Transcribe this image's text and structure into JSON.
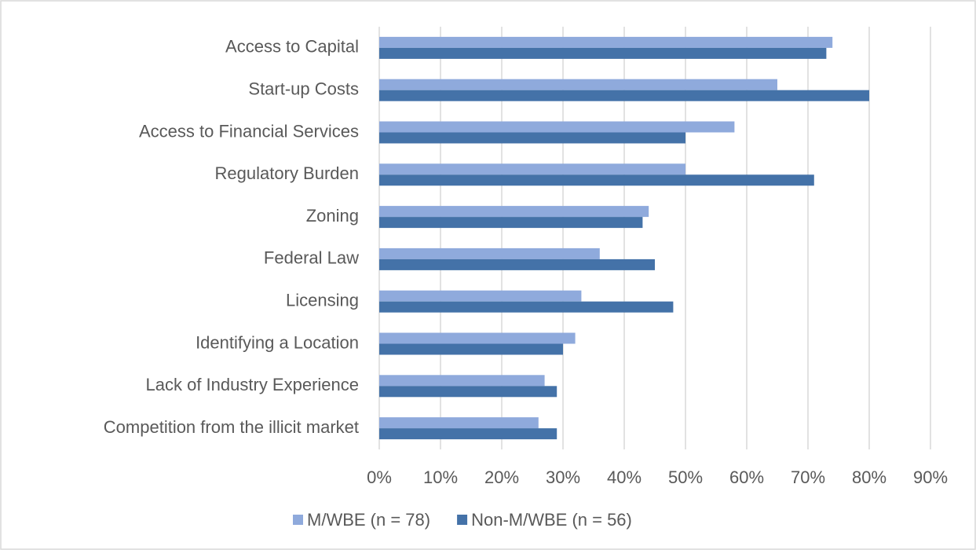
{
  "chart_data": {
    "type": "hbar",
    "categories": [
      "Access to Capital",
      "Start-up Costs",
      "Access to Financial Services",
      "Regulatory Burden",
      "Zoning",
      "Federal Law",
      "Licensing",
      "Identifying a Location",
      "Lack of Industry Experience",
      "Competition from the illicit market"
    ],
    "series": [
      {
        "name": "M/WBE (n = 78)",
        "color": "#8faadc",
        "values": [
          74,
          65,
          58,
          50,
          44,
          36,
          33,
          32,
          27,
          26
        ]
      },
      {
        "name": "Non-M/WBE (n = 56)",
        "color": "#4472a8",
        "values": [
          73,
          80,
          50,
          71,
          43,
          45,
          48,
          30,
          29,
          29
        ]
      }
    ],
    "xlim": [
      0,
      90
    ],
    "xticks": [
      {
        "value": 0,
        "label": "0%"
      },
      {
        "value": 10,
        "label": "10%"
      },
      {
        "value": 20,
        "label": "20%"
      },
      {
        "value": 30,
        "label": "30%"
      },
      {
        "value": 40,
        "label": "40%"
      },
      {
        "value": 50,
        "label": "50%"
      },
      {
        "value": 60,
        "label": "60%"
      },
      {
        "value": 70,
        "label": "70%"
      },
      {
        "value": 80,
        "label": "80%"
      },
      {
        "value": 90,
        "label": "90%"
      }
    ],
    "grid": true,
    "legend": "bottom"
  }
}
